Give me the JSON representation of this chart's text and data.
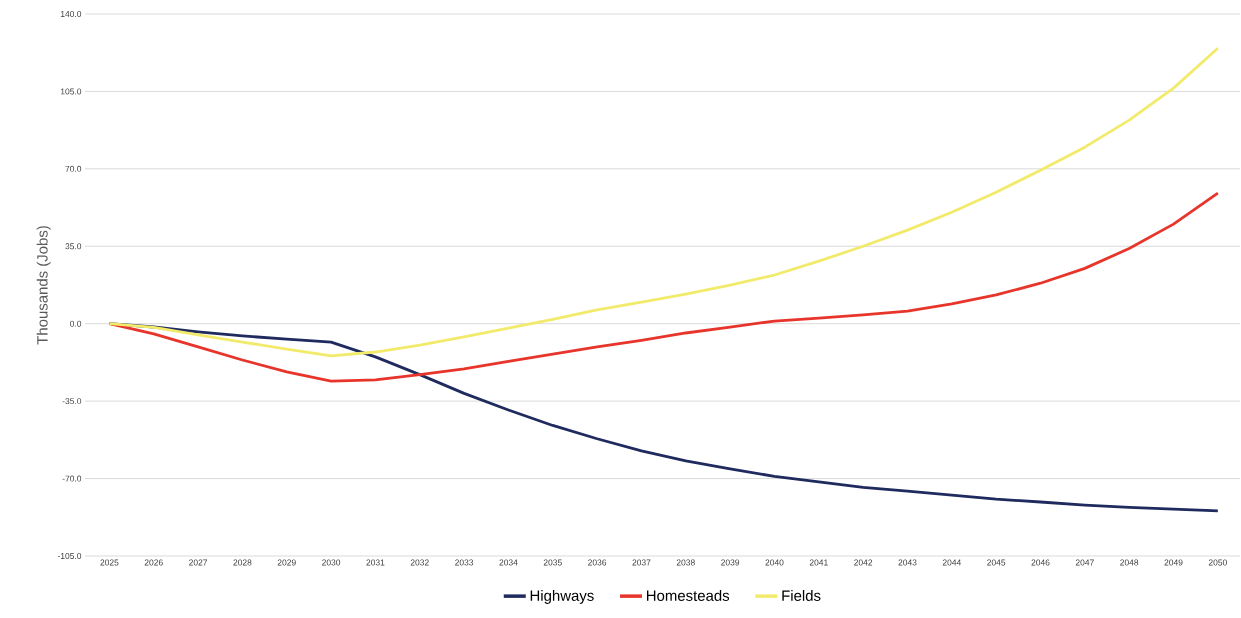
{
  "chart_data": {
    "type": "line",
    "ylabel": "Thousands (Jobs)",
    "categories": [
      "2025",
      "2026",
      "2027",
      "2028",
      "2029",
      "2030",
      "2031",
      "2032",
      "2033",
      "2034",
      "2035",
      "2036",
      "2037",
      "2038",
      "2039",
      "2040",
      "2041",
      "2042",
      "2043",
      "2044",
      "2045",
      "2046",
      "2047",
      "2048",
      "2049",
      "2050"
    ],
    "series": [
      {
        "name": "Highways",
        "color": "#1f2a5e",
        "values": [
          0,
          -1.5,
          -3.7,
          -5.5,
          -7,
          -8.3,
          -15,
          -23,
          -31.5,
          -39,
          -46,
          -52,
          -57.5,
          -62,
          -65.6,
          -69,
          -71.5,
          -74,
          -75.7,
          -77.5,
          -79.3,
          -80.6,
          -82,
          -83,
          -83.8,
          -84.6
        ]
      },
      {
        "name": "Homesteads",
        "color": "#e8352b",
        "values": [
          0,
          -4.6,
          -10.5,
          -16.4,
          -21.8,
          -26,
          -25.4,
          -23,
          -20.4,
          -17,
          -13.7,
          -10.5,
          -7.5,
          -4.2,
          -1.5,
          1.2,
          2.5,
          4,
          5.7,
          9,
          13,
          18.3,
          25,
          34,
          45,
          59
        ]
      },
      {
        "name": "Fields",
        "color": "#f2ea6a",
        "values": [
          0,
          -1.7,
          -5,
          -8.3,
          -11.5,
          -14.5,
          -12.8,
          -9.7,
          -6,
          -2,
          2,
          6.2,
          9.8,
          13.4,
          17.4,
          22,
          28.3,
          35,
          42.3,
          50.4,
          59.4,
          69.4,
          79.8,
          92,
          106.5,
          124.5
        ]
      }
    ],
    "ylim": [
      -105,
      140
    ],
    "yticks": [
      {
        "value": 140,
        "label": "140.0"
      },
      {
        "value": 105,
        "label": "105.0"
      },
      {
        "value": 70,
        "label": "70.0"
      },
      {
        "value": 35,
        "label": "35.0"
      },
      {
        "value": 0,
        "label": "0.0"
      },
      {
        "value": -35,
        "label": "-35.0"
      },
      {
        "value": -70,
        "label": "-70.0"
      },
      {
        "value": -105,
        "label": "-105.0"
      }
    ],
    "grid": "y",
    "legend": "bottom",
    "marker": "none",
    "line_style": "solid"
  }
}
